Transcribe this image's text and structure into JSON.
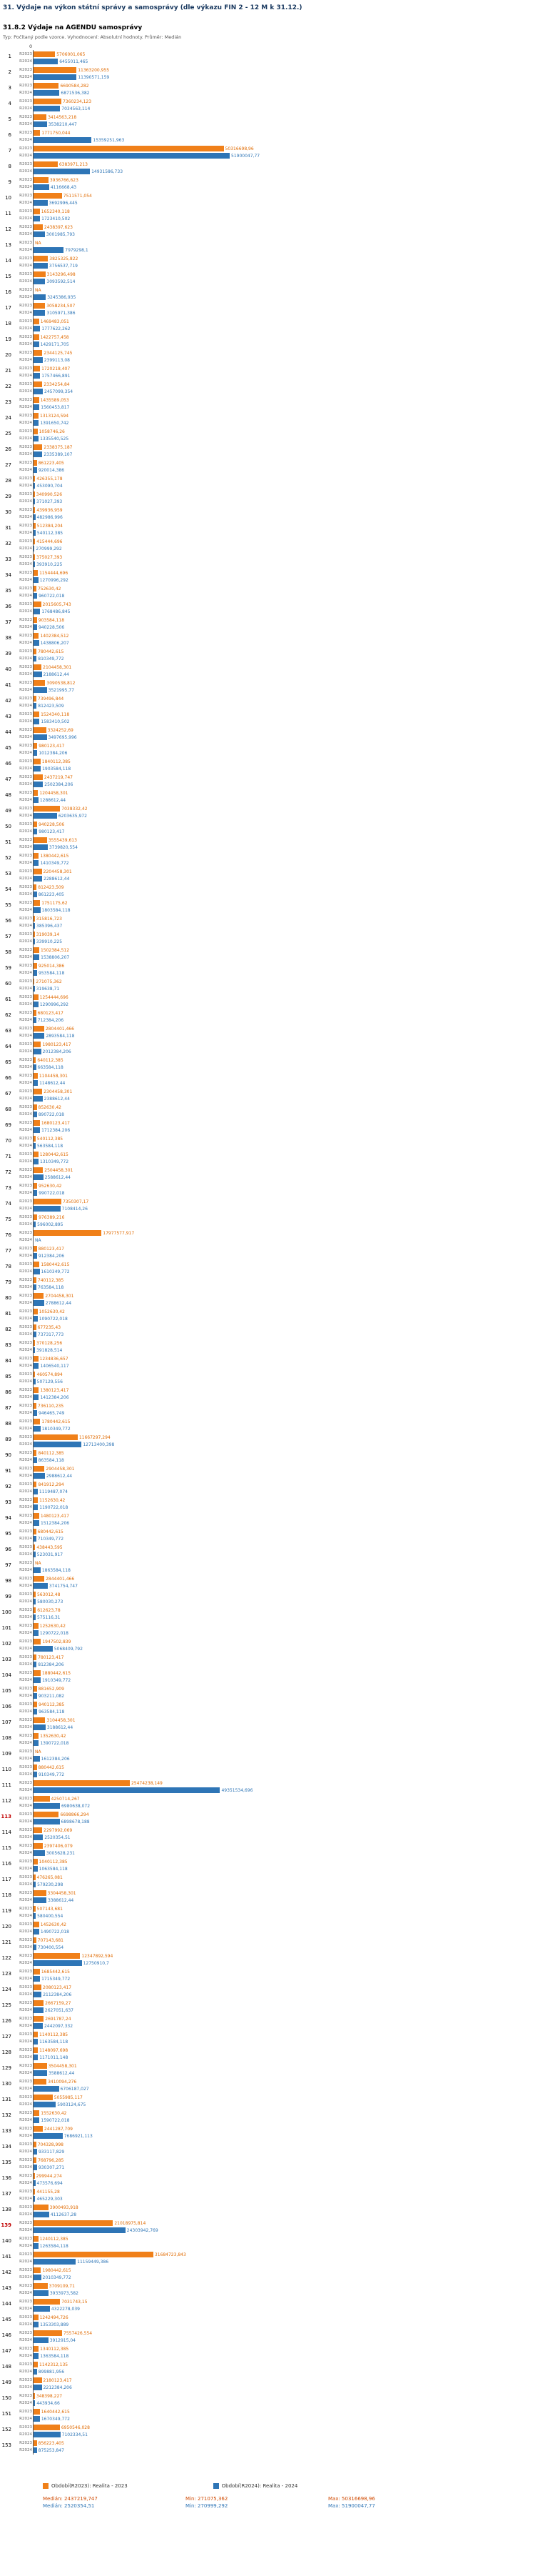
{
  "page": {
    "title": "31. Výdaje na výkon státní správy a samosprávy (dle výkazu FIN 2 - 12 M k 31.12.)",
    "subtitle": "31.8.2 Výdaje na AGENDU samosprávy",
    "meta": "Typ: Počítaný podle vzorce. Vyhodnocení: Absolutní hodnoty. Průměr: Medián"
  },
  "colors": {
    "series_2023": "#F08019",
    "series_2024": "#2E75B6",
    "highlight_row_number": "#C00000"
  },
  "axis": {
    "zero_label": "0"
  },
  "legend": {
    "item_2023": "Období(R2023): Realita - 2023",
    "item_2024": "Období(R2024): Realita - 2024"
  },
  "stats": {
    "r2023": {
      "median": "Medián: 2437219,747",
      "min": "Min: 271075,362",
      "max": "Max: 50316698,96"
    },
    "r2024": {
      "median": "Medián: 2520354,51",
      "min": "Min: 270999,292",
      "max": "Max: 51900047,77"
    }
  },
  "chart_data": {
    "type": "bar",
    "orientation": "horizontal",
    "series_names": [
      "R2023",
      "R2024"
    ],
    "value_axis_start_label": "0",
    "max_value": 51900047.77,
    "legend_position": "bottom",
    "highlight_rows": [
      113,
      139
    ],
    "rows": [
      [
        1,
        "5706001,065",
        "6455011,465"
      ],
      [
        2,
        "11363200,955",
        "11390571,159"
      ],
      [
        3,
        "6690584,282",
        "6871536,382"
      ],
      [
        4,
        "7360234,123",
        "7034563,114"
      ],
      [
        5,
        "3414563,218",
        "3538210,447"
      ],
      [
        6,
        "1771750,044",
        "15359251,963"
      ],
      [
        7,
        "50316698,96",
        "51900047,77"
      ],
      [
        8,
        "6383971,213",
        "14931586,733"
      ],
      [
        9,
        "3936766,623",
        "4116668,43"
      ],
      [
        10,
        "7511571,054",
        "3692996,445"
      ],
      [
        11,
        "1652340,118",
        "1723410,502"
      ],
      [
        12,
        "2438397,623",
        "3001985,793"
      ],
      [
        13,
        "NA",
        "7979298,1"
      ],
      [
        14,
        "3825325,822",
        "3756537,719"
      ],
      [
        15,
        "3143296,498",
        "3093592,514"
      ],
      [
        16,
        "NA",
        "3245386,935"
      ],
      [
        17,
        "3058234,507",
        "3105971,386"
      ],
      [
        18,
        "1469483,051",
        "1777622,262"
      ],
      [
        19,
        "1422757,458",
        "1429171,705"
      ],
      [
        20,
        "2344125,745",
        "2399113,08"
      ],
      [
        21,
        "1720218,407",
        "1757466,891"
      ],
      [
        22,
        "2334254,84",
        "2457099,354"
      ],
      [
        23,
        "1435589,053",
        "1560453,817"
      ],
      [
        24,
        "1313124,594",
        "1391650,742"
      ],
      [
        25,
        "1058746,26",
        "1335540,525"
      ],
      [
        26,
        "2338375,187",
        "2335389,107"
      ],
      [
        27,
        "861223,405",
        "920014,386"
      ],
      [
        28,
        "426355,178",
        "453090,704"
      ],
      [
        29,
        "340990,526",
        "371027,393"
      ],
      [
        30,
        "439936,959",
        "482986,996"
      ],
      [
        31,
        "512384,204",
        "540112,385"
      ],
      [
        32,
        "415444,696",
        "270999,292"
      ],
      [
        33,
        "375027,393",
        "393910,225"
      ],
      [
        34,
        "1154444,696",
        "1270996,292"
      ],
      [
        35,
        "752630,42",
        "960722,018"
      ],
      [
        36,
        "2015605,743",
        "1768486,845"
      ],
      [
        37,
        "903584,118",
        "940228,506"
      ],
      [
        38,
        "1402384,512",
        "1438806,207"
      ],
      [
        39,
        "780442,615",
        "810349,772"
      ],
      [
        40,
        "2104458,301",
        "2188612,44"
      ],
      [
        41,
        "3090538,812",
        "3521995,77"
      ],
      [
        42,
        "739496,844",
        "812423,509"
      ],
      [
        43,
        "1524340,118",
        "1583410,502"
      ],
      [
        44,
        "3324252,69",
        "3497695,996"
      ],
      [
        45,
        "980123,417",
        "1012384,206"
      ],
      [
        46,
        "1840112,385",
        "1903584,118"
      ],
      [
        47,
        "2437219,747",
        "2502384,206"
      ],
      [
        48,
        "1204458,301",
        "1288612,44"
      ],
      [
        49,
        "7038332,42",
        "6203635,972"
      ],
      [
        50,
        "940228,506",
        "980123,417"
      ],
      [
        51,
        "3555439,613",
        "3739820,554"
      ],
      [
        52,
        "1380442,615",
        "1410349,772"
      ],
      [
        53,
        "2204458,301",
        "2288612,44"
      ],
      [
        54,
        "812423,509",
        "861223,405"
      ],
      [
        55,
        "1751175,62",
        "1803584,118"
      ],
      [
        56,
        "315816,723",
        "385396,437"
      ],
      [
        57,
        "319039,14",
        "339910,225"
      ],
      [
        58,
        "1502384,512",
        "1538806,207"
      ],
      [
        59,
        "925014,386",
        "953584,118"
      ],
      [
        60,
        "271075,362",
        "319638,71"
      ],
      [
        61,
        "1254444,696",
        "1290996,292"
      ],
      [
        62,
        "680123,417",
        "712384,206"
      ],
      [
        63,
        "2804401,466",
        "2893584,118"
      ],
      [
        64,
        "1980123,417",
        "2012384,206"
      ],
      [
        65,
        "640112,385",
        "663584,118"
      ],
      [
        66,
        "1104458,301",
        "1148612,44"
      ],
      [
        67,
        "2304458,301",
        "2388612,44"
      ],
      [
        68,
        "852630,42",
        "890722,018"
      ],
      [
        69,
        "1680123,417",
        "1712384,206"
      ],
      [
        70,
        "540112,385",
        "563584,118"
      ],
      [
        71,
        "1280442,615",
        "1310349,772"
      ],
      [
        72,
        "2504458,301",
        "2588612,44"
      ],
      [
        73,
        "952630,42",
        "990722,018"
      ],
      [
        74,
        "7350307,17",
        "7108414,26"
      ],
      [
        75,
        "976389,216",
        "596002,895"
      ],
      [
        76,
        "17977577,917",
        "NA"
      ],
      [
        77,
        "880123,417",
        "912384,206"
      ],
      [
        78,
        "1580442,615",
        "1610349,772"
      ],
      [
        79,
        "740112,385",
        "763584,118"
      ],
      [
        80,
        "2704458,301",
        "2788612,44"
      ],
      [
        81,
        "1052630,42",
        "1090722,018"
      ],
      [
        82,
        "677235,43",
        "737317,773"
      ],
      [
        83,
        "370128,256",
        "391828,514"
      ],
      [
        84,
        "1234836,657",
        "1406540,117"
      ],
      [
        85,
        "460574,894",
        "507129,556"
      ],
      [
        86,
        "1380123,417",
        "1412384,206"
      ],
      [
        87,
        "736110,235",
        "946465,749"
      ],
      [
        88,
        "1780442,615",
        "1810349,772"
      ],
      [
        89,
        "11667297,294",
        "12713400,398"
      ],
      [
        90,
        "840112,385",
        "863584,118"
      ],
      [
        91,
        "2904458,301",
        "2988612,44"
      ],
      [
        92,
        "841912,294",
        "1119487,074"
      ],
      [
        93,
        "1152630,42",
        "1190722,018"
      ],
      [
        94,
        "1480123,417",
        "1512384,206"
      ],
      [
        95,
        "680442,615",
        "710349,772"
      ],
      [
        96,
        "438443,595",
        "523031,917"
      ],
      [
        97,
        "NA",
        "1863584,118"
      ],
      [
        98,
        "2844401,466",
        "3741754,747"
      ],
      [
        99,
        "563012,48",
        "580030,273"
      ],
      [
        100,
        "612623,78",
        "575116,31"
      ],
      [
        101,
        "1252630,42",
        "1290722,018"
      ],
      [
        102,
        "1947502,839",
        "5068409,792"
      ],
      [
        103,
        "780123,417",
        "812384,206"
      ],
      [
        104,
        "1880442,615",
        "1910349,772"
      ],
      [
        105,
        "881652,909",
        "903211,082"
      ],
      [
        106,
        "940112,385",
        "963584,118"
      ],
      [
        107,
        "3104458,301",
        "3188612,44"
      ],
      [
        108,
        "1352630,42",
        "1390722,018"
      ],
      [
        109,
        "NA",
        "1612384,206"
      ],
      [
        110,
        "880442,615",
        "910349,772"
      ],
      [
        111,
        "25474238,149",
        "49351534,696"
      ],
      [
        112,
        "4250714,267",
        "6980638,072"
      ],
      [
        113,
        "6698866,294",
        "6898678,188"
      ],
      [
        114,
        "2297992,069",
        "2520354,51"
      ],
      [
        115,
        "2397406,079",
        "3005628,231"
      ],
      [
        116,
        "1040112,385",
        "1063584,118"
      ],
      [
        117,
        "476265,081",
        "579230,298"
      ],
      [
        118,
        "3304458,301",
        "3388612,44"
      ],
      [
        119,
        "507143,681",
        "580400,554"
      ],
      [
        120,
        "1452630,42",
        "1490722,018"
      ],
      [
        121,
        "707143,681",
        "730400,554"
      ],
      [
        122,
        "12347892,594",
        "12750910,7"
      ],
      [
        123,
        "1685442,615",
        "1715349,772"
      ],
      [
        124,
        "2080123,417",
        "2112384,206"
      ],
      [
        125,
        "2667159,27",
        "2627051,637"
      ],
      [
        126,
        "2691787,24",
        "2442097,332"
      ],
      [
        127,
        "1140112,385",
        "1163584,118"
      ],
      [
        128,
        "1148097,698",
        "1171011,148"
      ],
      [
        129,
        "3504458,301",
        "3588612,44"
      ],
      [
        130,
        "3410094,276",
        "6706187,027"
      ],
      [
        131,
        "5055985,117",
        "5903124,675"
      ],
      [
        132,
        "1552630,42",
        "1590722,018"
      ],
      [
        133,
        "2441287,709",
        "7686921,113"
      ],
      [
        134,
        "704328,998",
        "933117,829"
      ],
      [
        135,
        "768796,285",
        "930307,271"
      ],
      [
        136,
        "299944,274",
        "473576,694"
      ],
      [
        137,
        "441155,28",
        "465229,303"
      ],
      [
        138,
        "3900493,918",
        "4112637,28"
      ],
      [
        139,
        "21018975,814",
        "24303942,769"
      ],
      [
        140,
        "1240112,385",
        "1263584,118"
      ],
      [
        141,
        "31684723,843",
        "11159449,386"
      ],
      [
        142,
        "1980442,615",
        "2010349,772"
      ],
      [
        143,
        "3709109,71",
        "3933973,582"
      ],
      [
        144,
        "7031743,15",
        "4322278,039"
      ],
      [
        145,
        "1242494,726",
        "1353303,889"
      ],
      [
        146,
        "7557426,554",
        "3912915,04"
      ],
      [
        147,
        "1340112,385",
        "1363584,118"
      ],
      [
        148,
        "1142312,135",
        "899881,956"
      ],
      [
        149,
        "2180123,417",
        "2212384,206"
      ],
      [
        150,
        "348398,227",
        "443934,66"
      ],
      [
        151,
        "1640442,615",
        "1670349,772"
      ],
      [
        152,
        "6950546,028",
        "7102334,51"
      ],
      [
        153,
        "856223,405",
        "875253,847"
      ]
    ]
  }
}
